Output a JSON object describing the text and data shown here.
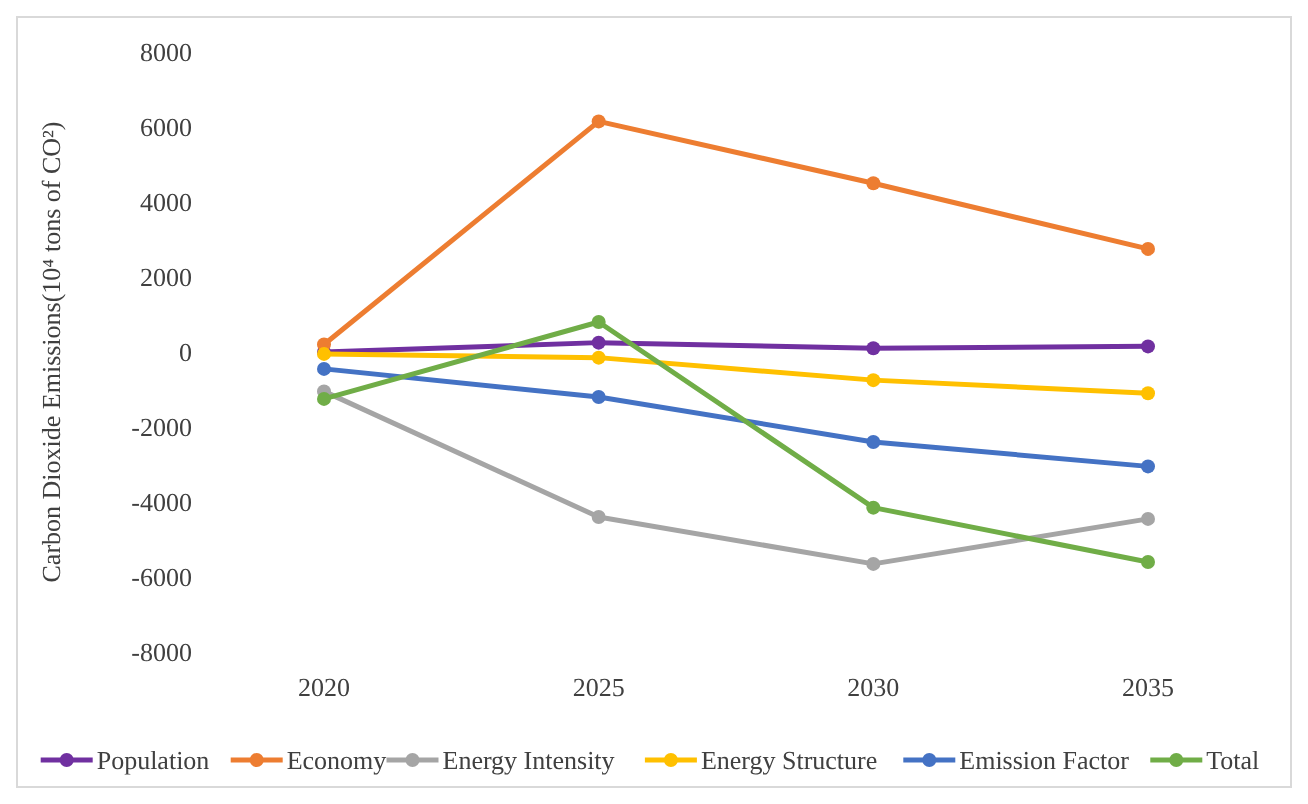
{
  "chart_data": {
    "type": "line",
    "ylabel": "Carbon Dioxide Emissions(10⁴ tons of CO²)",
    "categories": [
      "2020",
      "2025",
      "2030",
      "2035"
    ],
    "ylim": [
      -8000,
      8000
    ],
    "yticks": [
      -8000,
      -6000,
      -4000,
      -2000,
      0,
      2000,
      4000,
      6000,
      8000
    ],
    "grid": false,
    "legend": "bottom",
    "marker": "circle",
    "line_style": "solid",
    "series": [
      {
        "name": "Population",
        "color": "#7030a0",
        "values": [
          0,
          250,
          100,
          150
        ]
      },
      {
        "name": "Economy",
        "color": "#ed7d31",
        "values": [
          200,
          6150,
          4500,
          2750
        ]
      },
      {
        "name": "Energy Intensity",
        "color": "#a5a5a5",
        "values": [
          -1050,
          -4400,
          -5650,
          -4450
        ]
      },
      {
        "name": "Energy Structure",
        "color": "#ffc000",
        "values": [
          -50,
          -150,
          -750,
          -1100
        ]
      },
      {
        "name": "Emission Factor",
        "color": "#4472c4",
        "values": [
          -450,
          -1200,
          -2400,
          -3050
        ]
      },
      {
        "name": "Total",
        "color": "#70ad47",
        "values": [
          -1250,
          800,
          -4150,
          -5600
        ]
      }
    ]
  }
}
